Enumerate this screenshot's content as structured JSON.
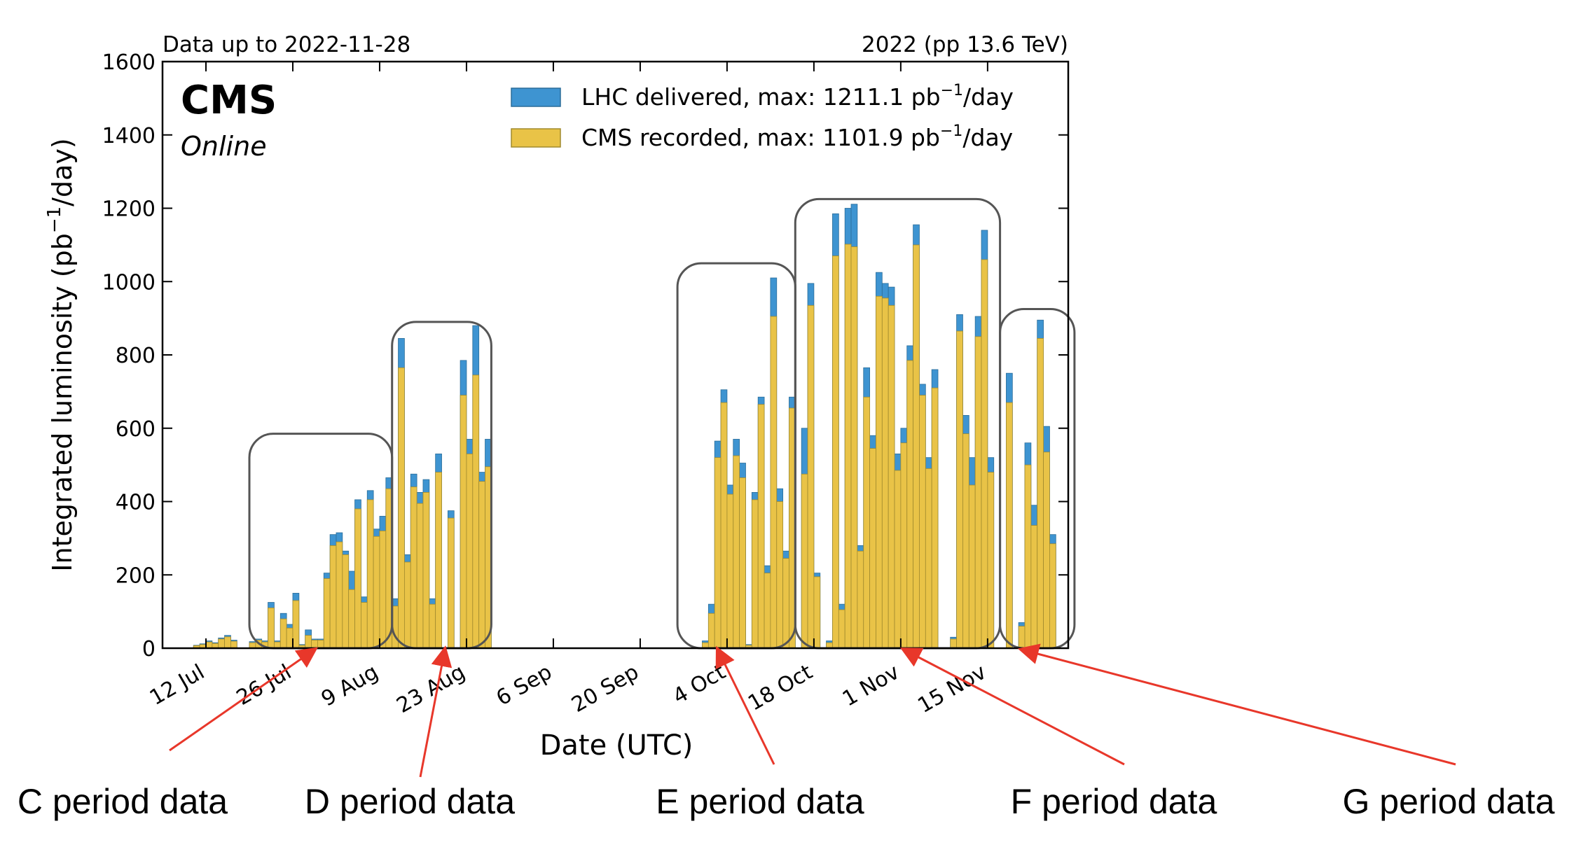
{
  "chart_data": {
    "type": "bar",
    "header_left": "Data up to 2022-11-28",
    "header_right": "2022 (pp 13.6 TeV)",
    "experiment": "CMS",
    "status": "Online",
    "xlabel": "Date (UTC)",
    "ylabel_main": "Integrated luminosity (pb",
    "ylabel_sup": "−1",
    "ylabel_end": "/day)",
    "x_start": "2022-07-05",
    "xlim": [
      "2022-07-05",
      "2022-11-28"
    ],
    "ylim": [
      0,
      1600
    ],
    "yticks": [
      0,
      200,
      400,
      600,
      800,
      1000,
      1200,
      1400,
      1600
    ],
    "xticks": [
      {
        "label": "12 Jul",
        "date": "2022-07-12"
      },
      {
        "label": "26 Jul",
        "date": "2022-07-26"
      },
      {
        "label": "9 Aug",
        "date": "2022-08-09"
      },
      {
        "label": "23 Aug",
        "date": "2022-08-23"
      },
      {
        "label": "6 Sep",
        "date": "2022-09-06"
      },
      {
        "label": "20 Sep",
        "date": "2022-09-20"
      },
      {
        "label": "4 Oct",
        "date": "2022-10-04"
      },
      {
        "label": "18 Oct",
        "date": "2022-10-18"
      },
      {
        "label": "1 Nov",
        "date": "2022-11-01"
      },
      {
        "label": "15 Nov",
        "date": "2022-11-15"
      }
    ],
    "legend": {
      "placement": "top-right",
      "entries": [
        {
          "prefix": "LHC delivered, max: 1211.1 pb",
          "sup": "−1",
          "suffix": "/day",
          "color": "#3e94d1"
        },
        {
          "prefix": "CMS recorded, max: 1101.9 pb",
          "sup": "−1",
          "suffix": "/day",
          "color": "#e9c347"
        }
      ]
    },
    "series": [
      {
        "name": "LHC delivered",
        "color": "#3e94d1",
        "points": [
          [
            "2022-07-10",
            8
          ],
          [
            "2022-07-11",
            12
          ],
          [
            "2022-07-12",
            20
          ],
          [
            "2022-07-13",
            15
          ],
          [
            "2022-07-14",
            28
          ],
          [
            "2022-07-15",
            35
          ],
          [
            "2022-07-16",
            22
          ],
          [
            "2022-07-19",
            18
          ],
          [
            "2022-07-20",
            25
          ],
          [
            "2022-07-21",
            20
          ],
          [
            "2022-07-22",
            125
          ],
          [
            "2022-07-23",
            20
          ],
          [
            "2022-07-24",
            95
          ],
          [
            "2022-07-25",
            65
          ],
          [
            "2022-07-26",
            150
          ],
          [
            "2022-07-27",
            10
          ],
          [
            "2022-07-28",
            50
          ],
          [
            "2022-07-29",
            25
          ],
          [
            "2022-07-30",
            25
          ],
          [
            "2022-07-31",
            205
          ],
          [
            "2022-08-01",
            310
          ],
          [
            "2022-08-02",
            315
          ],
          [
            "2022-08-03",
            265
          ],
          [
            "2022-08-04",
            210
          ],
          [
            "2022-08-05",
            405
          ],
          [
            "2022-08-06",
            140
          ],
          [
            "2022-08-07",
            430
          ],
          [
            "2022-08-08",
            325
          ],
          [
            "2022-08-09",
            360
          ],
          [
            "2022-08-10",
            465
          ],
          [
            "2022-08-11",
            135
          ],
          [
            "2022-08-12",
            845
          ],
          [
            "2022-08-13",
            255
          ],
          [
            "2022-08-14",
            475
          ],
          [
            "2022-08-15",
            425
          ],
          [
            "2022-08-16",
            460
          ],
          [
            "2022-08-17",
            135
          ],
          [
            "2022-08-18",
            530
          ],
          [
            "2022-08-20",
            375
          ],
          [
            "2022-08-22",
            785
          ],
          [
            "2022-08-23",
            570
          ],
          [
            "2022-08-24",
            880
          ],
          [
            "2022-08-25",
            480
          ],
          [
            "2022-08-26",
            570
          ],
          [
            "2022-09-30",
            20
          ],
          [
            "2022-10-01",
            120
          ],
          [
            "2022-10-02",
            565
          ],
          [
            "2022-10-03",
            705
          ],
          [
            "2022-10-04",
            445
          ],
          [
            "2022-10-05",
            570
          ],
          [
            "2022-10-06",
            505
          ],
          [
            "2022-10-07",
            10
          ],
          [
            "2022-10-08",
            425
          ],
          [
            "2022-10-09",
            685
          ],
          [
            "2022-10-10",
            225
          ],
          [
            "2022-10-11",
            1010
          ],
          [
            "2022-10-12",
            435
          ],
          [
            "2022-10-13",
            265
          ],
          [
            "2022-10-14",
            685
          ],
          [
            "2022-10-16",
            600
          ],
          [
            "2022-10-17",
            995
          ],
          [
            "2022-10-18",
            205
          ],
          [
            "2022-10-20",
            20
          ],
          [
            "2022-10-21",
            1185
          ],
          [
            "2022-10-22",
            120
          ],
          [
            "2022-10-23",
            1200
          ],
          [
            "2022-10-24",
            1211.1
          ],
          [
            "2022-10-25",
            280
          ],
          [
            "2022-10-26",
            765
          ],
          [
            "2022-10-27",
            580
          ],
          [
            "2022-10-28",
            1025
          ],
          [
            "2022-10-29",
            995
          ],
          [
            "2022-10-30",
            985
          ],
          [
            "2022-10-31",
            530
          ],
          [
            "2022-11-01",
            600
          ],
          [
            "2022-11-02",
            825
          ],
          [
            "2022-11-03",
            1155
          ],
          [
            "2022-11-04",
            720
          ],
          [
            "2022-11-05",
            520
          ],
          [
            "2022-11-06",
            760
          ],
          [
            "2022-11-09",
            30
          ],
          [
            "2022-11-10",
            910
          ],
          [
            "2022-11-11",
            635
          ],
          [
            "2022-11-12",
            520
          ],
          [
            "2022-11-13",
            905
          ],
          [
            "2022-11-14",
            1140
          ],
          [
            "2022-11-15",
            520
          ],
          [
            "2022-11-18",
            750
          ],
          [
            "2022-11-20",
            70
          ],
          [
            "2022-11-21",
            560
          ],
          [
            "2022-11-22",
            390
          ],
          [
            "2022-11-23",
            895
          ],
          [
            "2022-11-24",
            605
          ],
          [
            "2022-11-25",
            310
          ]
        ]
      },
      {
        "name": "CMS recorded",
        "color": "#e9c347",
        "points": [
          [
            "2022-07-10",
            7
          ],
          [
            "2022-07-11",
            10
          ],
          [
            "2022-07-12",
            17
          ],
          [
            "2022-07-13",
            13
          ],
          [
            "2022-07-14",
            25
          ],
          [
            "2022-07-15",
            31
          ],
          [
            "2022-07-16",
            19
          ],
          [
            "2022-07-19",
            15
          ],
          [
            "2022-07-20",
            22
          ],
          [
            "2022-07-21",
            17
          ],
          [
            "2022-07-22",
            110
          ],
          [
            "2022-07-23",
            17
          ],
          [
            "2022-07-24",
            80
          ],
          [
            "2022-07-25",
            55
          ],
          [
            "2022-07-26",
            130
          ],
          [
            "2022-07-27",
            8
          ],
          [
            "2022-07-28",
            35
          ],
          [
            "2022-07-29",
            22
          ],
          [
            "2022-07-30",
            22
          ],
          [
            "2022-07-31",
            190
          ],
          [
            "2022-08-01",
            280
          ],
          [
            "2022-08-02",
            290
          ],
          [
            "2022-08-03",
            255
          ],
          [
            "2022-08-04",
            160
          ],
          [
            "2022-08-05",
            380
          ],
          [
            "2022-08-06",
            125
          ],
          [
            "2022-08-07",
            405
          ],
          [
            "2022-08-08",
            305
          ],
          [
            "2022-08-09",
            320
          ],
          [
            "2022-08-10",
            435
          ],
          [
            "2022-08-11",
            115
          ],
          [
            "2022-08-12",
            765
          ],
          [
            "2022-08-13",
            235
          ],
          [
            "2022-08-14",
            440
          ],
          [
            "2022-08-15",
            395
          ],
          [
            "2022-08-16",
            425
          ],
          [
            "2022-08-17",
            120
          ],
          [
            "2022-08-18",
            480
          ],
          [
            "2022-08-20",
            355
          ],
          [
            "2022-08-22",
            690
          ],
          [
            "2022-08-23",
            530
          ],
          [
            "2022-08-24",
            745
          ],
          [
            "2022-08-25",
            455
          ],
          [
            "2022-08-26",
            495
          ],
          [
            "2022-09-30",
            15
          ],
          [
            "2022-10-01",
            95
          ],
          [
            "2022-10-02",
            520
          ],
          [
            "2022-10-03",
            670
          ],
          [
            "2022-10-04",
            420
          ],
          [
            "2022-10-05",
            525
          ],
          [
            "2022-10-06",
            465
          ],
          [
            "2022-10-07",
            8
          ],
          [
            "2022-10-08",
            405
          ],
          [
            "2022-10-09",
            665
          ],
          [
            "2022-10-10",
            205
          ],
          [
            "2022-10-11",
            905
          ],
          [
            "2022-10-12",
            400
          ],
          [
            "2022-10-13",
            245
          ],
          [
            "2022-10-14",
            655
          ],
          [
            "2022-10-16",
            475
          ],
          [
            "2022-10-17",
            935
          ],
          [
            "2022-10-18",
            195
          ],
          [
            "2022-10-20",
            15
          ],
          [
            "2022-10-21",
            1070
          ],
          [
            "2022-10-22",
            105
          ],
          [
            "2022-10-23",
            1101.9
          ],
          [
            "2022-10-24",
            1095
          ],
          [
            "2022-10-25",
            265
          ],
          [
            "2022-10-26",
            685
          ],
          [
            "2022-10-27",
            545
          ],
          [
            "2022-10-28",
            960
          ],
          [
            "2022-10-29",
            955
          ],
          [
            "2022-10-30",
            935
          ],
          [
            "2022-10-31",
            485
          ],
          [
            "2022-11-01",
            560
          ],
          [
            "2022-11-02",
            785
          ],
          [
            "2022-11-03",
            1100
          ],
          [
            "2022-11-04",
            690
          ],
          [
            "2022-11-05",
            490
          ],
          [
            "2022-11-06",
            710
          ],
          [
            "2022-11-09",
            25
          ],
          [
            "2022-11-10",
            865
          ],
          [
            "2022-11-11",
            585
          ],
          [
            "2022-11-12",
            445
          ],
          [
            "2022-11-13",
            850
          ],
          [
            "2022-11-14",
            1060
          ],
          [
            "2022-11-15",
            480
          ],
          [
            "2022-11-18",
            670
          ],
          [
            "2022-11-20",
            60
          ],
          [
            "2022-11-21",
            500
          ],
          [
            "2022-11-22",
            335
          ],
          [
            "2022-11-23",
            845
          ],
          [
            "2022-11-24",
            535
          ],
          [
            "2022-11-25",
            285
          ]
        ]
      }
    ],
    "period_boxes": [
      {
        "period": "C",
        "start": "2022-07-19",
        "end": "2022-08-10",
        "top": 585
      },
      {
        "period": "D",
        "start": "2022-08-11",
        "end": "2022-08-26",
        "top": 890
      },
      {
        "period": "E",
        "start": "2022-09-26",
        "end": "2022-10-14",
        "top": 1050
      },
      {
        "period": "F",
        "start": "2022-10-15",
        "end": "2022-11-16",
        "top": 1225
      },
      {
        "period": "G",
        "start": "2022-11-17",
        "end": "2022-11-28",
        "top": 925
      }
    ],
    "annotations": [
      {
        "label": "C period data",
        "target_date": "2022-07-29"
      },
      {
        "label": "D period data",
        "target_date": "2022-08-19"
      },
      {
        "label": "E period data",
        "target_date": "2022-10-02"
      },
      {
        "label": "F period data",
        "target_date": "2022-11-01"
      },
      {
        "label": "G period data",
        "target_date": "2022-11-20"
      }
    ]
  }
}
